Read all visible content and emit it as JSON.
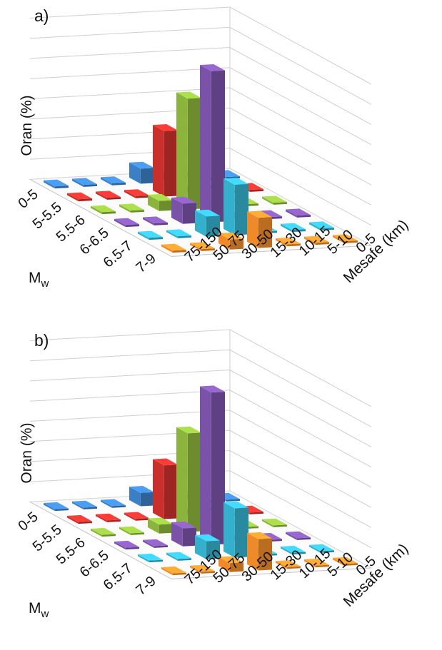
{
  "chart_data": [
    {
      "type": "bar",
      "panel_label": "a)",
      "zlabel": "Oran (%)",
      "xlabel": "Mw",
      "xlabel_main": "M",
      "xlabel_sub": "w",
      "ylabel": "Mesafe (km)",
      "magnitude_bins": [
        "0-5",
        "5-5.5",
        "5.5-6",
        "6-6.5",
        "6.5-7",
        "7-9"
      ],
      "distance_bins": [
        "0-5",
        "5-10",
        "10-15",
        "15-30",
        "30-50",
        "50-75",
        "75-150"
      ],
      "colors": [
        "#3b7fc4",
        "#c9302c",
        "#8ab43c",
        "#7a52a8",
        "#34b0cc",
        "#ef8a2a"
      ],
      "grid": true,
      "values": [
        [
          0.2,
          0.2,
          0.2,
          0.2,
          0.2,
          0.2
        ],
        [
          0.2,
          0.2,
          0.2,
          0.2,
          0.2,
          0.2
        ],
        [
          0.2,
          0.2,
          0.2,
          0.2,
          0.2,
          0.2
        ],
        [
          1.5,
          6.5,
          11.0,
          15.0,
          5.0,
          3.0
        ],
        [
          0.2,
          0.2,
          1.0,
          2.0,
          2.0,
          1.0
        ],
        [
          0.2,
          0.2,
          0.2,
          0.2,
          0.2,
          0.2
        ],
        [
          0.2,
          0.2,
          0.2,
          0.2,
          0.2,
          0.2
        ]
      ]
    },
    {
      "type": "bar",
      "panel_label": "b)",
      "zlabel": "Oran (%)",
      "xlabel": "Mw",
      "xlabel_main": "M",
      "xlabel_sub": "w",
      "ylabel": "Mesafe (km)",
      "magnitude_bins": [
        "0-5",
        "5-5.5",
        "5.5-6",
        "6-6.5",
        "6.5-7",
        "7-9"
      ],
      "distance_bins": [
        "0-5",
        "5-10",
        "10-15",
        "15-30",
        "30-50",
        "50-75",
        "75-150"
      ],
      "colors": [
        "#3b7fc4",
        "#c9302c",
        "#8ab43c",
        "#7a52a8",
        "#34b0cc",
        "#ef8a2a"
      ],
      "grid": true,
      "values": [
        [
          0.2,
          0.2,
          0.2,
          0.2,
          0.2,
          0.2
        ],
        [
          0.2,
          0.2,
          0.2,
          0.2,
          0.2,
          0.2
        ],
        [
          0.2,
          0.2,
          0.2,
          0.2,
          0.2,
          0.2
        ],
        [
          1.5,
          6.0,
          11.0,
          17.0,
          5.5,
          3.5
        ],
        [
          0.2,
          0.2,
          1.0,
          2.0,
          2.0,
          1.0
        ],
        [
          0.2,
          0.2,
          0.2,
          0.2,
          0.2,
          0.2
        ],
        [
          0.2,
          0.2,
          0.2,
          0.2,
          0.2,
          0.2
        ]
      ]
    }
  ]
}
